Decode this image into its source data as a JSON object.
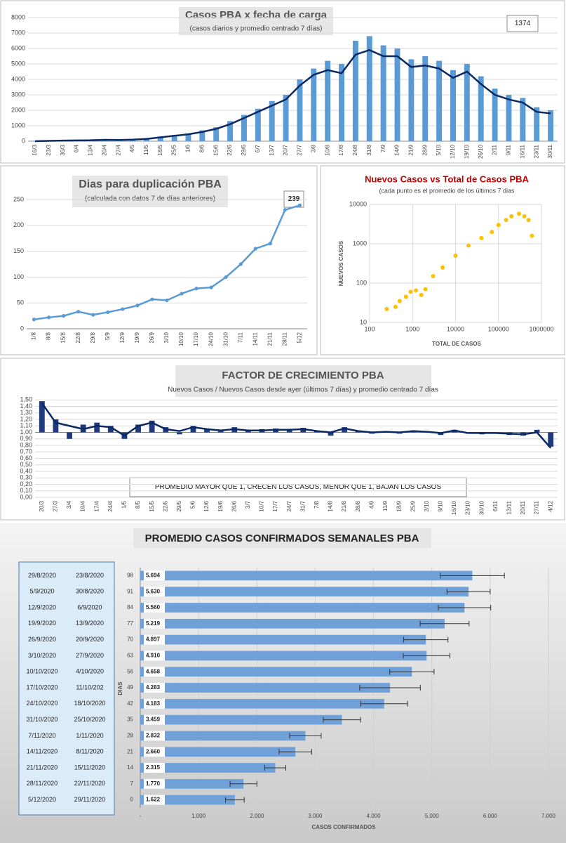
{
  "chart_data": [
    {
      "type": "combo",
      "title": "Casos  PBA x fecha de carga",
      "subtitle": "(casos diarios y promedio centrado 7 días)",
      "annotation": "1374",
      "categories": [
        "16/3",
        "23/3",
        "30/3",
        "6/4",
        "13/4",
        "20/4",
        "27/4",
        "4/5",
        "11/5",
        "18/5",
        "25/5",
        "1/6",
        "8/6",
        "15/6",
        "22/6",
        "29/6",
        "6/7",
        "13/7",
        "20/7",
        "27/7",
        "3/8",
        "10/8",
        "17/8",
        "24/8",
        "31/8",
        "7/9",
        "14/9",
        "21/9",
        "28/9",
        "5/10",
        "12/10",
        "19/10",
        "26/10",
        "2/11",
        "9/11",
        "16/11",
        "23/11",
        "30/11"
      ],
      "series": [
        {
          "kind": "bar",
          "color": "#5b9bd5",
          "values": [
            30,
            40,
            60,
            80,
            90,
            120,
            100,
            130,
            200,
            300,
            400,
            500,
            700,
            900,
            1300,
            1700,
            2100,
            2600,
            3000,
            4000,
            4700,
            5200,
            5000,
            6500,
            6800,
            6200,
            6000,
            5300,
            5500,
            5200,
            4600,
            5000,
            4200,
            3400,
            3000,
            2800,
            2200,
            2000
          ]
        },
        {
          "kind": "line",
          "color": "#0b2a63",
          "values": [
            0,
            20,
            40,
            50,
            60,
            90,
            80,
            100,
            150,
            250,
            350,
            450,
            600,
            800,
            1100,
            1500,
            1900,
            2300,
            2700,
            3600,
            4300,
            4600,
            4400,
            5600,
            5900,
            5500,
            5500,
            4800,
            4900,
            4700,
            4100,
            4500,
            3700,
            3000,
            2700,
            2500,
            1900,
            1800
          ]
        }
      ],
      "ylim": [
        0,
        8000
      ],
      "yticks": [
        0,
        1000,
        2000,
        3000,
        4000,
        5000,
        6000,
        7000,
        8000
      ],
      "grid": true
    },
    {
      "type": "line",
      "title": "Dias para duplicación PBA",
      "subtitle": "(calculada con datos 7 de días anteriores)",
      "annotation": "239",
      "categories": [
        "1/8",
        "8/8",
        "15/8",
        "22/8",
        "29/8",
        "5/9",
        "12/9",
        "19/9",
        "26/9",
        "3/10",
        "10/10",
        "17/10",
        "24/10",
        "31/10",
        "7/11",
        "14/11",
        "21/11",
        "28/11",
        "5/12"
      ],
      "series": [
        {
          "color": "#5b9bd5",
          "values": [
            18,
            22,
            25,
            33,
            27,
            32,
            38,
            45,
            57,
            55,
            68,
            78,
            80,
            100,
            125,
            155,
            165,
            230,
            239
          ]
        }
      ],
      "ylim": [
        0,
        280
      ],
      "yticks": [
        0,
        50,
        100,
        150,
        200,
        250
      ],
      "grid": true
    },
    {
      "type": "scatter",
      "title": "Nuevos Casos vs Total de Casos PBA",
      "subtitle": "(cada punto es el promedio de los últimos 7 dias",
      "x_label": "TOTAL DE CASOS",
      "y_label": "NUEVOS  CASOS",
      "x": [
        250,
        400,
        500,
        700,
        900,
        1200,
        1600,
        2000,
        3000,
        5000,
        10000,
        20000,
        40000,
        70000,
        100000,
        150000,
        200000,
        300000,
        400000,
        500000,
        600000
      ],
      "y": [
        22,
        25,
        35,
        45,
        60,
        65,
        50,
        70,
        150,
        250,
        500,
        900,
        1400,
        2000,
        3000,
        4000,
        5000,
        5800,
        5000,
        4000,
        1600
      ],
      "color": "#ffc000",
      "log_scale": true,
      "xlim": [
        100,
        1000000
      ],
      "ylim": [
        10,
        10000
      ],
      "xticks": [
        100,
        1000,
        10000,
        100000,
        1000000
      ],
      "yticks": [
        10,
        100,
        1000,
        10000
      ],
      "grid": true
    },
    {
      "type": "combo",
      "title": "FACTOR DE CRECIMIENTO PBA",
      "subtitle": "Nuevos Casos  / Nuevos Casos desde ayer (últimos 7 días) y promedio  centrado 7 días",
      "annotation": "PROMEDIO MAYOR QUE 1, CRECEN LOS CASOS, MENOR QUE 1, BAJAN LOS CASOS",
      "categories": [
        "20/3",
        "27/3",
        "3/4",
        "10/4",
        "17/4",
        "24/4",
        "1/5",
        "8/5",
        "15/5",
        "22/5",
        "29/5",
        "5/6",
        "12/6",
        "19/6",
        "26/6",
        "3/7",
        "10/7",
        "17/7",
        "24/7",
        "31/7",
        "7/8",
        "14/8",
        "21/8",
        "28/8",
        "4/9",
        "11/9",
        "18/9",
        "25/9",
        "2/10",
        "9/10",
        "16/10",
        "23/10",
        "30/10",
        "6/11",
        "13/11",
        "20/11",
        "27/11",
        "4/12"
      ],
      "baseline": 1,
      "series": [
        {
          "kind": "bar",
          "color": "#1f3a7a",
          "values": [
            1.48,
            1.2,
            0.9,
            1.12,
            1.15,
            1.1,
            0.9,
            1.12,
            1.18,
            1.08,
            0.97,
            1.1,
            1.06,
            1.02,
            1.08,
            1.04,
            1.05,
            1.06,
            1.03,
            1.07,
            1.03,
            0.95,
            1.08,
            1.03,
            0.98,
            1.02,
            0.98,
            1.03,
            1.02,
            0.96,
            1.04,
            0.98,
            0.97,
            0.98,
            0.96,
            0.95,
            1.04,
            0.78
          ]
        },
        {
          "kind": "line",
          "color": "#0b2a63",
          "values": [
            1.45,
            1.15,
            1.1,
            1.05,
            1.1,
            1.08,
            0.95,
            1.1,
            1.15,
            1.05,
            1.02,
            1.08,
            1.05,
            1.03,
            1.05,
            1.03,
            1.03,
            1.04,
            1.04,
            1.05,
            1.02,
            1.0,
            1.06,
            1.02,
            1.0,
            1.01,
            1.0,
            1.02,
            1.01,
            0.99,
            1.03,
            0.99,
            0.99,
            0.99,
            0.98,
            0.97,
            1.0,
            0.76
          ]
        }
      ],
      "ylim": [
        0,
        1.6
      ],
      "yticks": [
        {
          "value": 0,
          "label": "0,00"
        },
        {
          "value": 0.1,
          "label": "0,10"
        },
        {
          "value": 0.2,
          "label": "0,20"
        },
        {
          "value": 0.3,
          "label": "0,30"
        },
        {
          "value": 0.4,
          "label": "0,40"
        },
        {
          "value": 0.5,
          "label": "0,50"
        },
        {
          "value": 0.6,
          "label": "0,60"
        },
        {
          "value": 0.7,
          "label": "0,70"
        },
        {
          "value": 0.8,
          "label": "0,80"
        },
        {
          "value": 0.9,
          "label": "0,90"
        },
        {
          "value": 1,
          "label": "1,00"
        },
        {
          "value": 1.1,
          "label": "1,10"
        },
        {
          "value": 1.2,
          "label": "1,20"
        },
        {
          "value": 1.3,
          "label": "1,30"
        },
        {
          "value": 1.4,
          "label": "1,40"
        },
        {
          "value": 1.5,
          "label": "1,50"
        }
      ],
      "grid": true
    },
    {
      "type": "hbar",
      "title": "PROMEDIO CASOS CONFIRMADOS SEMANALES PBA",
      "x_label": "CASOS CONFIRMADOS",
      "y_label": "DIAS",
      "categories": [
        98,
        91,
        84,
        77,
        70,
        63,
        56,
        49,
        42,
        35,
        28,
        21,
        14,
        7,
        0
      ],
      "values": [
        5694,
        5630,
        5560,
        5219,
        4897,
        4910,
        4658,
        4283,
        4183,
        3459,
        2832,
        2660,
        2315,
        1770,
        1622
      ],
      "value_labels": [
        "5.694",
        "5.630",
        "5.560",
        "5.219",
        "4.897",
        "4.910",
        "4.658",
        "4.283",
        "4.183",
        "3.459",
        "2.832",
        "2.660",
        "2.315",
        "1.770",
        "1.622"
      ],
      "errors": [
        550,
        370,
        450,
        420,
        380,
        400,
        380,
        520,
        400,
        320,
        270,
        280,
        180,
        230,
        160
      ],
      "color": "#6fa1d8",
      "xlim": [
        0,
        7000
      ],
      "xticks": [
        {
          "value": 0,
          "label": "-"
        },
        {
          "value": 1000,
          "label": "1.000"
        },
        {
          "value": 2000,
          "label": "2.000"
        },
        {
          "value": 3000,
          "label": "3.000"
        },
        {
          "value": 4000,
          "label": "4.000"
        },
        {
          "value": 5000,
          "label": "5.000"
        },
        {
          "value": 6000,
          "label": "6.000"
        },
        {
          "value": 7000,
          "label": "7.000"
        }
      ],
      "grid": true
    }
  ],
  "table": {
    "rows": [
      [
        "29/8/2020",
        "23/8/2020"
      ],
      [
        "5/9/2020",
        "30/8/2020"
      ],
      [
        "12/9/2020",
        "6/9/2020"
      ],
      [
        "19/9/2020",
        "13/9/2020"
      ],
      [
        "26/9/2020",
        "20/9/2020"
      ],
      [
        "3/10/2020",
        "27/9/2020"
      ],
      [
        "10/10/2020",
        "4/10/2020"
      ],
      [
        "17/10/2020",
        "11/10/202"
      ],
      [
        "24/10/2020",
        "18/10/2020"
      ],
      [
        "31/10/2020",
        "25/10/2020"
      ],
      [
        "7/11/2020",
        "1/11/2020"
      ],
      [
        "14/11/2020",
        "8/11/2020"
      ],
      [
        "21/11/2020",
        "15/11/2020"
      ],
      [
        "28/11/2020",
        "22/11/2020"
      ],
      [
        "5/12/2020",
        "29/11/2020"
      ]
    ]
  }
}
